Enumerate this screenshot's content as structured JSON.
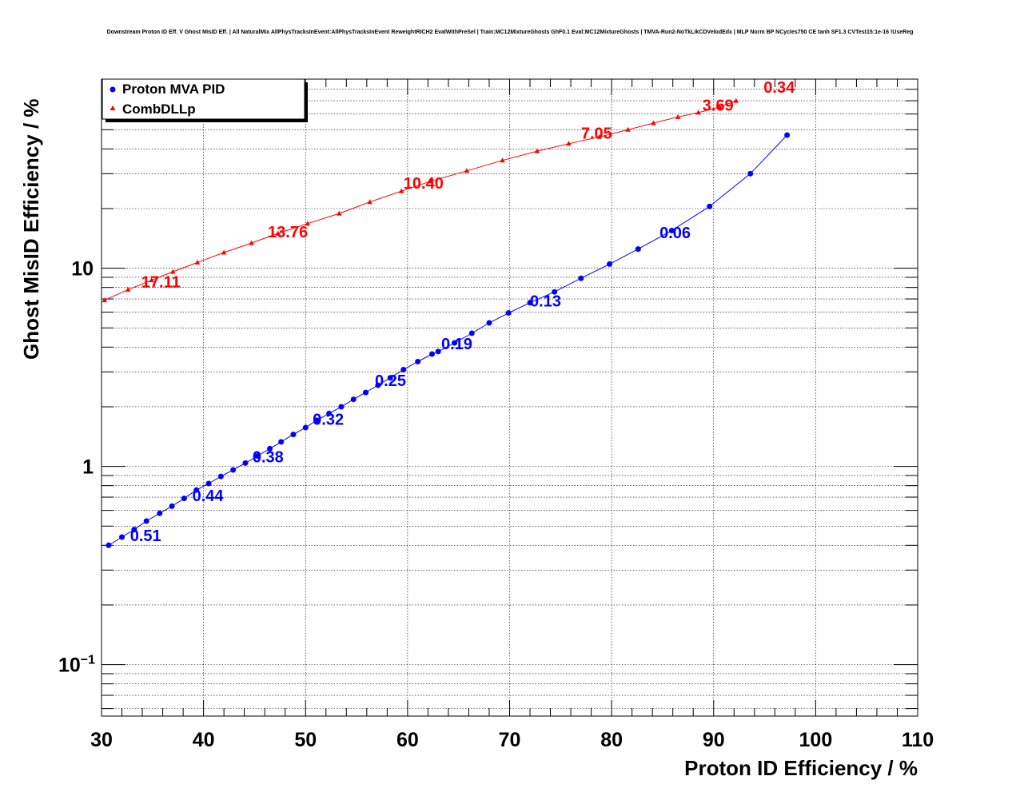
{
  "chart_data": {
    "type": "line",
    "title": "Downstream Proton ID Eff. V Ghost MisID Eff. | All NaturalMix AllPhysTracksInEvent:AllPhysTracksInEvent ReweightRICH2 EvalWithPreSel | Train:MC12MixtureGhosts GhF0.1 Eval:MC12MixtureGhosts | TMVA-Run2-NoTkLikCDVelodEdx | MLP Norm BP NCycles750 CE tanh SF1.3 CVTest15:1e-16 !UseReg",
    "xlabel": "Proton ID Efficiency / %",
    "ylabel": "Ghost MisID Efficiency / %",
    "xlim": [
      30,
      110
    ],
    "ylim": [
      0.055,
      90
    ],
    "yscale": "log",
    "grid": true,
    "legend_position": "top-left",
    "x_ticks": [
      "30",
      "40",
      "50",
      "60",
      "70",
      "80",
      "90",
      "100",
      "110"
    ],
    "y_ticks": [
      {
        "base": "10",
        "exp": "−1",
        "value": 0.1
      },
      {
        "base": "1",
        "exp": "",
        "value": 1
      },
      {
        "base": "10",
        "exp": "",
        "value": 10
      }
    ],
    "series": [
      {
        "name": "Proton MVA PID",
        "color": "#0000ff",
        "marker": "circle",
        "points": [
          [
            30.7,
            0.4
          ],
          [
            32.0,
            0.44
          ],
          [
            33.2,
            0.48
          ],
          [
            34.4,
            0.53
          ],
          [
            35.7,
            0.58
          ],
          [
            36.9,
            0.63
          ],
          [
            38.1,
            0.69
          ],
          [
            39.3,
            0.76
          ],
          [
            40.5,
            0.82
          ],
          [
            41.7,
            0.89
          ],
          [
            42.9,
            0.96
          ],
          [
            44.1,
            1.04
          ],
          [
            45.3,
            1.13
          ],
          [
            46.5,
            1.23
          ],
          [
            47.6,
            1.33
          ],
          [
            48.8,
            1.45
          ],
          [
            50.0,
            1.57
          ],
          [
            51.1,
            1.71
          ],
          [
            52.3,
            1.85
          ],
          [
            53.5,
            2.0
          ],
          [
            54.7,
            2.18
          ],
          [
            55.9,
            2.36
          ],
          [
            57.1,
            2.57
          ],
          [
            58.3,
            2.8
          ],
          [
            59.6,
            3.08
          ],
          [
            61.0,
            3.38
          ],
          [
            62.4,
            3.69
          ],
          [
            63.0,
            3.8
          ],
          [
            64.6,
            4.2
          ],
          [
            66.3,
            4.7
          ],
          [
            68.0,
            5.3
          ],
          [
            69.9,
            5.95
          ],
          [
            72.0,
            6.7
          ],
          [
            74.4,
            7.6
          ],
          [
            77.0,
            8.9
          ],
          [
            79.8,
            10.5
          ],
          [
            82.6,
            12.5
          ],
          [
            85.9,
            15.5
          ],
          [
            89.6,
            20.5
          ],
          [
            93.6,
            30.0
          ],
          [
            97.2,
            47.0
          ]
        ],
        "annotations": [
          {
            "x": 32.8,
            "y": 0.42,
            "text": "0.51"
          },
          {
            "x": 38.9,
            "y": 0.67,
            "text": "0.44"
          },
          {
            "x": 44.8,
            "y": 1.05,
            "text": "0.38"
          },
          {
            "x": 50.7,
            "y": 1.62,
            "text": "0.32"
          },
          {
            "x": 56.8,
            "y": 2.55,
            "text": "0.25"
          },
          {
            "x": 63.3,
            "y": 3.9,
            "text": "0.19"
          },
          {
            "x": 72.0,
            "y": 6.4,
            "text": "0.13"
          },
          {
            "x": 84.7,
            "y": 14.2,
            "text": "0.06"
          }
        ]
      },
      {
        "name": "CombDLLp",
        "color": "#ff0000",
        "marker": "triangle",
        "points": [
          [
            30.3,
            6.9
          ],
          [
            32.6,
            7.8
          ],
          [
            34.9,
            8.7
          ],
          [
            37.0,
            9.6
          ],
          [
            39.4,
            10.7
          ],
          [
            42.0,
            12.0
          ],
          [
            44.7,
            13.4
          ],
          [
            47.3,
            15.0
          ],
          [
            50.2,
            16.8
          ],
          [
            53.3,
            18.9
          ],
          [
            56.3,
            21.6
          ],
          [
            59.4,
            24.5
          ],
          [
            62.3,
            27.5
          ],
          [
            65.8,
            31.0
          ],
          [
            69.3,
            35.0
          ],
          [
            72.7,
            39.0
          ],
          [
            75.8,
            42.5
          ],
          [
            78.8,
            46.0
          ],
          [
            81.6,
            50.0
          ],
          [
            84.1,
            54.0
          ],
          [
            86.5,
            58.0
          ],
          [
            88.5,
            61.0
          ],
          [
            90.6,
            65.0
          ],
          [
            92.2,
            70.0
          ]
        ],
        "annotations": [
          {
            "x": 33.9,
            "y": 8.0,
            "text": "17.11"
          },
          {
            "x": 46.3,
            "y": 14.3,
            "text": "13.76"
          },
          {
            "x": 59.6,
            "y": 25.2,
            "text": "10.40"
          },
          {
            "x": 77.0,
            "y": 45.0,
            "text": "7.05"
          },
          {
            "x": 88.9,
            "y": 62.5,
            "text": "3.69"
          },
          {
            "x": 94.9,
            "y": 77.0,
            "text": "0.34"
          }
        ]
      }
    ]
  }
}
